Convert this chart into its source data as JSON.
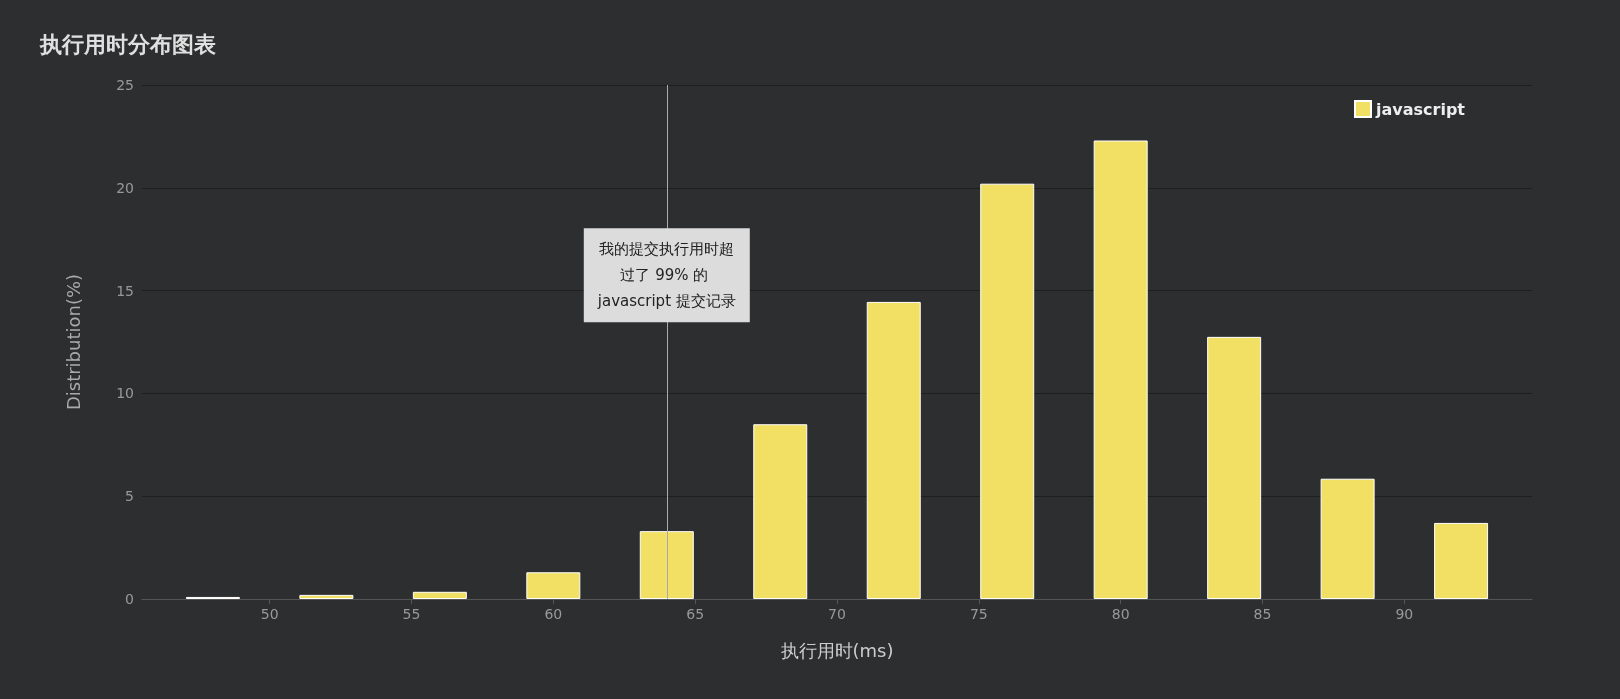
{
  "chart_data": {
    "type": "bar",
    "title": "执行用时分布图表",
    "xlabel": "执行用时(ms)",
    "ylabel": "Distribution(%)",
    "x": [
      48,
      52,
      56,
      60,
      64,
      68,
      72,
      76,
      80,
      84,
      88,
      92
    ],
    "series": [
      {
        "name": "javascript",
        "color": "#f2e065",
        "values": [
          0.1,
          0.2,
          0.35,
          1.3,
          3.3,
          8.5,
          14.45,
          20.2,
          22.3,
          12.75,
          5.85,
          3.7
        ]
      }
    ],
    "xlim": [
      45.5,
      94.5
    ],
    "xticks": [
      50,
      55,
      60,
      65,
      70,
      75,
      80,
      85,
      90
    ],
    "ylim": [
      0,
      25
    ],
    "yticks": [
      0,
      5,
      10,
      15,
      20,
      25
    ],
    "ref_lines": [
      {
        "axis": "x",
        "value": 64,
        "label": "我的提交执行用时超过了 99% 的 javascript 提交记录",
        "color": "#aaaaaa"
      }
    ],
    "grid": "y",
    "legend": "top right"
  }
}
